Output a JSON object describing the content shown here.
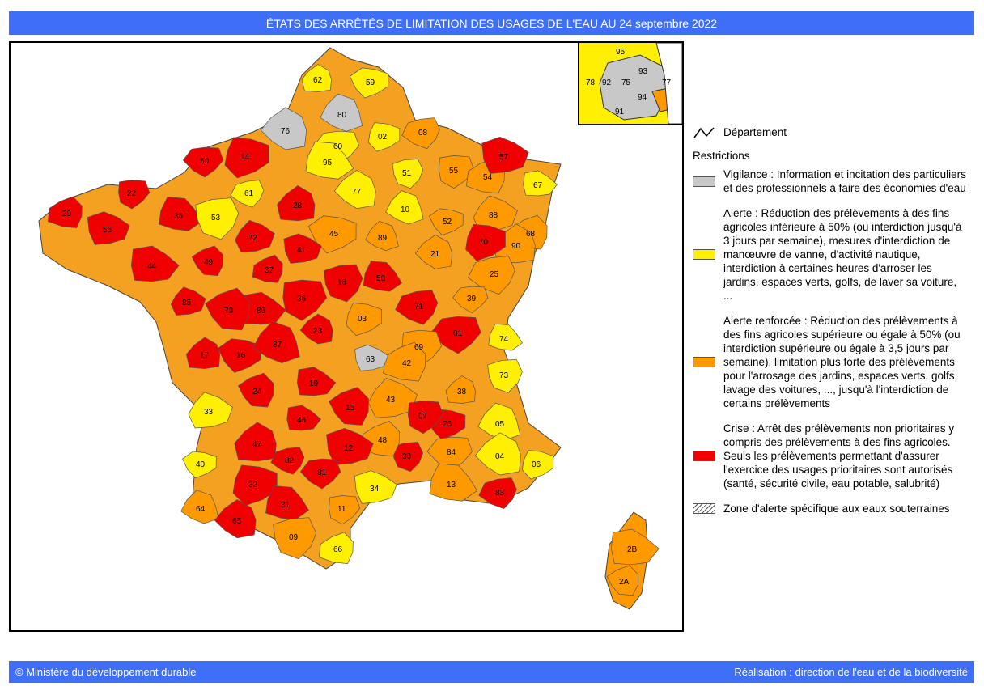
{
  "title": "ÉTATS DES ARRÊTÉS DE LIMITATION DES USAGES DE L'EAU AU 24 septembre 2022",
  "colors": {
    "vigilance": "#c8c8c8",
    "alerte": "#ffef00",
    "alerte_renforcee": "#ff9900",
    "crise": "#f00000",
    "banner": "#3f6ff7"
  },
  "legend": {
    "department_label": "Département",
    "restrictions_title": "Restrictions",
    "items": [
      {
        "key": "vigilance",
        "text": "Vigilance : Information et incitation des particuliers et des professionnels à faire des économies d'eau"
      },
      {
        "key": "alerte",
        "text": "Alerte : Réduction des prélèvements à des fins agricoles inférieure à 50% (ou interdiction jusqu'à 3 jours par semaine), mesures d'interdiction de manœuvre de vanne, d'activité nautique, interdiction à certaines heures d'arroser les jardins, espaces verts, golfs, de laver sa voiture, ..."
      },
      {
        "key": "alerte_renforcee",
        "text": "Alerte renforcée : Réduction des prélèvements à des fins agricoles supérieure ou égale à 50% (ou interdiction supérieure ou égale à 3,5 jours par semaine), limitation plus forte des prélèvements pour l'arrosage des jardins, espaces verts, golfs, lavage des voitures, ..., jusqu'à l'interdiction de certains prélèvements"
      },
      {
        "key": "crise",
        "text": "Crise : Arrêt des prélèvements non prioritaires y compris des prélèvements à des fins agricoles. Seuls les prélèvements permettant d'assurer l'exercice des usages prioritaires sont autorisés (santé, sécurité civile, eau potable, salubrité)"
      },
      {
        "key": "souterraines",
        "text": "Zone d'alerte spécifique aux eaux souterraines"
      }
    ]
  },
  "map": {
    "departments": [
      {
        "code": "62",
        "status": "alerte"
      },
      {
        "code": "59",
        "status": "alerte"
      },
      {
        "code": "80",
        "status": "vigilance"
      },
      {
        "code": "76",
        "status": "vigilance"
      },
      {
        "code": "02",
        "status": "alerte"
      },
      {
        "code": "08",
        "status": "alerte_renforcee"
      },
      {
        "code": "60",
        "status": "alerte"
      },
      {
        "code": "95",
        "status": "alerte"
      },
      {
        "code": "51",
        "status": "alerte"
      },
      {
        "code": "55",
        "status": "alerte_renforcee"
      },
      {
        "code": "54",
        "status": "alerte_renforcee"
      },
      {
        "code": "57",
        "status": "crise"
      },
      {
        "code": "67",
        "status": "alerte"
      },
      {
        "code": "68",
        "status": "alerte_renforcee"
      },
      {
        "code": "88",
        "status": "alerte_renforcee"
      },
      {
        "code": "90",
        "status": "alerte_renforcee"
      },
      {
        "code": "52",
        "status": "alerte_renforcee"
      },
      {
        "code": "10",
        "status": "alerte"
      },
      {
        "code": "77",
        "status": "alerte"
      },
      {
        "code": "14",
        "status": "crise"
      },
      {
        "code": "61",
        "status": "alerte"
      },
      {
        "code": "50",
        "status": "crise"
      },
      {
        "code": "35",
        "status": "crise"
      },
      {
        "code": "53",
        "status": "alerte"
      },
      {
        "code": "22",
        "status": "crise"
      },
      {
        "code": "29",
        "status": "crise"
      },
      {
        "code": "56",
        "status": "crise"
      },
      {
        "code": "44",
        "status": "crise"
      },
      {
        "code": "49",
        "status": "crise"
      },
      {
        "code": "72",
        "status": "crise"
      },
      {
        "code": "28",
        "status": "crise"
      },
      {
        "code": "45",
        "status": "alerte_renforcee"
      },
      {
        "code": "89",
        "status": "alerte_renforcee"
      },
      {
        "code": "21",
        "status": "alerte_renforcee"
      },
      {
        "code": "70",
        "status": "crise"
      },
      {
        "code": "25",
        "status": "alerte_renforcee"
      },
      {
        "code": "39",
        "status": "alerte_renforcee"
      },
      {
        "code": "58",
        "status": "crise"
      },
      {
        "code": "18",
        "status": "crise"
      },
      {
        "code": "36",
        "status": "crise"
      },
      {
        "code": "37",
        "status": "crise"
      },
      {
        "code": "41",
        "status": "crise"
      },
      {
        "code": "86",
        "status": "crise"
      },
      {
        "code": "79",
        "status": "crise"
      },
      {
        "code": "85",
        "status": "crise"
      },
      {
        "code": "17",
        "status": "crise"
      },
      {
        "code": "16",
        "status": "crise"
      },
      {
        "code": "87",
        "status": "crise"
      },
      {
        "code": "23",
        "status": "crise"
      },
      {
        "code": "03",
        "status": "alerte_renforcee"
      },
      {
        "code": "71",
        "status": "crise"
      },
      {
        "code": "01",
        "status": "crise"
      },
      {
        "code": "74",
        "status": "alerte"
      },
      {
        "code": "73",
        "status": "alerte"
      },
      {
        "code": "69",
        "status": "alerte_renforcee"
      },
      {
        "code": "42",
        "status": "alerte_renforcee"
      },
      {
        "code": "63",
        "status": "vigilance"
      },
      {
        "code": "19",
        "status": "crise"
      },
      {
        "code": "15",
        "status": "crise"
      },
      {
        "code": "43",
        "status": "alerte_renforcee"
      },
      {
        "code": "38",
        "status": "alerte_renforcee"
      },
      {
        "code": "26",
        "status": "crise"
      },
      {
        "code": "05",
        "status": "alerte"
      },
      {
        "code": "04",
        "status": "alerte"
      },
      {
        "code": "06",
        "status": "alerte"
      },
      {
        "code": "83",
        "status": "crise"
      },
      {
        "code": "84",
        "status": "alerte_renforcee"
      },
      {
        "code": "13",
        "status": "alerte_renforcee"
      },
      {
        "code": "30",
        "status": "crise"
      },
      {
        "code": "07",
        "status": "crise"
      },
      {
        "code": "48",
        "status": "alerte_renforcee"
      },
      {
        "code": "12",
        "status": "crise"
      },
      {
        "code": "46",
        "status": "crise"
      },
      {
        "code": "24",
        "status": "crise"
      },
      {
        "code": "33",
        "status": "alerte"
      },
      {
        "code": "47",
        "status": "crise"
      },
      {
        "code": "40",
        "status": "alerte"
      },
      {
        "code": "64",
        "status": "alerte_renforcee"
      },
      {
        "code": "65",
        "status": "crise"
      },
      {
        "code": "32",
        "status": "crise"
      },
      {
        "code": "82",
        "status": "crise"
      },
      {
        "code": "81",
        "status": "crise"
      },
      {
        "code": "31",
        "status": "crise"
      },
      {
        "code": "09",
        "status": "alerte_renforcee"
      },
      {
        "code": "11",
        "status": "alerte_renforcee"
      },
      {
        "code": "66",
        "status": "alerte"
      },
      {
        "code": "34",
        "status": "alerte"
      },
      {
        "code": "2B",
        "status": "alerte_renforcee"
      },
      {
        "code": "2A",
        "status": "alerte_renforcee"
      },
      {
        "code": "93",
        "status": "vigilance"
      },
      {
        "code": "92",
        "status": "vigilance"
      },
      {
        "code": "75",
        "status": "vigilance"
      },
      {
        "code": "94",
        "status": "vigilance"
      },
      {
        "code": "91",
        "status": "vigilance"
      },
      {
        "code": "78",
        "status": "alerte"
      }
    ]
  },
  "footer": {
    "left": "© Ministère du développement durable",
    "right": "Réalisation : direction de l'eau et de la biodiversité"
  }
}
